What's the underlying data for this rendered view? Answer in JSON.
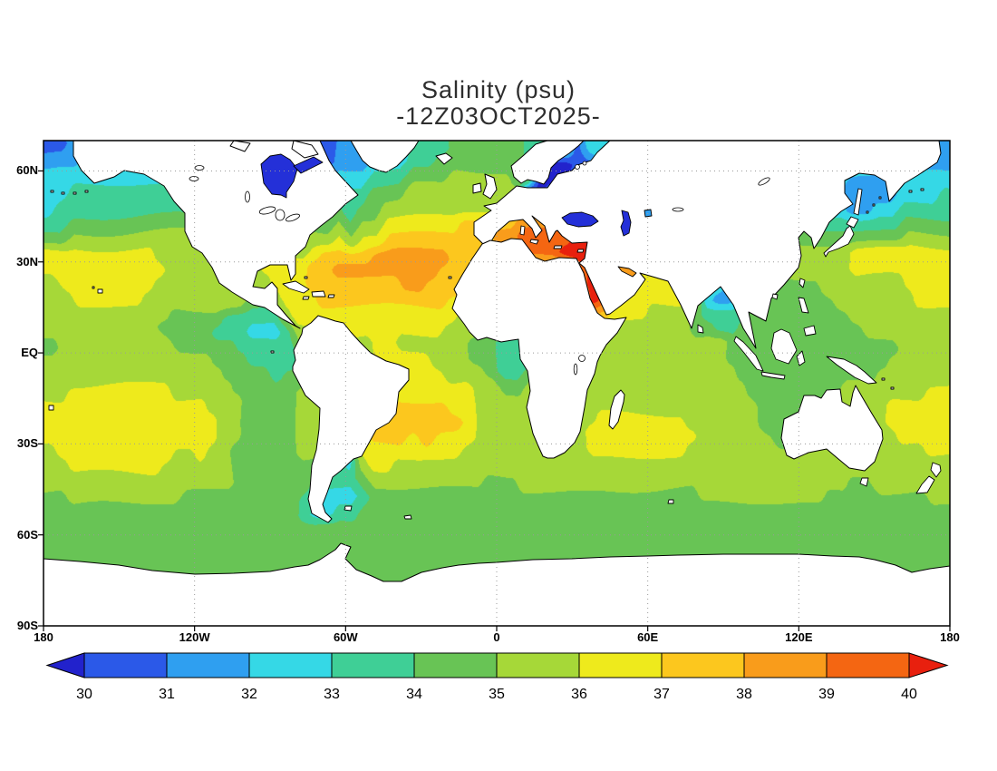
{
  "title": {
    "line1": "Salinity (psu)",
    "line2": "-12Z03OCT2025-"
  },
  "map": {
    "lat_ticks": [
      {
        "label": "60N",
        "lat": 60
      },
      {
        "label": "30N",
        "lat": 30
      },
      {
        "label": "EQ",
        "lat": 0
      },
      {
        "label": "30S",
        "lat": -30
      },
      {
        "label": "60S",
        "lat": -60
      },
      {
        "label": "90S",
        "lat": -90
      }
    ],
    "lon_ticks": [
      {
        "label": "180",
        "lon": -180
      },
      {
        "label": "120W",
        "lon": -120
      },
      {
        "label": "60W",
        "lon": -60
      },
      {
        "label": "0",
        "lon": 0
      },
      {
        "label": "60E",
        "lon": 60
      },
      {
        "label": "120E",
        "lon": 120
      },
      {
        "label": "180",
        "lon": 180
      }
    ]
  },
  "colorbar": {
    "labels": [
      "30",
      "31",
      "32",
      "33",
      "34",
      "35",
      "36",
      "37",
      "38",
      "39",
      "40"
    ]
  },
  "chart_data": {
    "type": "heatmap",
    "title": "Salinity (psu)",
    "time_label": "12Z03OCT2025",
    "units": "psu",
    "levels": [
      30,
      31,
      32,
      33,
      34,
      35,
      36,
      37,
      38,
      39,
      40
    ],
    "lon_range": [
      -180,
      180
    ],
    "lat_range": [
      -90,
      70
    ],
    "palette_keys": "0123456789AB",
    "palette_colors": [
      "#2222cc",
      "#2b59e8",
      "#2f9ff0",
      "#35d8e6",
      "#3fcf96",
      "#68c455",
      "#a6d838",
      "#eeea1c",
      "#fcc71e",
      "#f99c1b",
      "#f46612",
      "#e8200e"
    ],
    "grid_rows": [
      "112223333332222210001112223334445555554444133333333333333333333333332222",
      "222333333333332210001112223334455555554400113333333333333333333333332222",
      "333333333333333321111223334445556666655000233333333333333333333322223333",
      "334444444444443322223334445556666666660022334444444444444433332222223334",
      "344444444444444433334445455666666666666633334444444444444444443322334444",
      "445555555555555544445556566777777888889999000116666666665555444444445555",
      "55666666666666665555666767788888888899AAAABBA166666666666655555555556666",
      "77777777766666666556678888999999888889AAABBBA866666666666666666677777777",
      "777777777766666667777889999999988877888888ABA8A8777777666666666677777777",
      "677777777666666666777888888899888877777777ABA877777733245555556666667777",
      "6677777766666666556777888888888877777777779BA777777732234555555666666777",
      "666666666655554444467777777777777666666666788777666544445555555566666666",
      "666666666555544433346677777777776666655555566666666554455555555556666666",
      "566666666655555444445667667766666655444555666666666666555555555555556666",
      "666666666666655544445666667777766655444555666666666666555555555555566666",
      "666666666666665555455667777777776665445566666666666666655555555555666666",
      "667777777766666555556677777777777766556666666666666666665555555666666677",
      "777777777777766655556677778888887766666666666666666666666555556666677777",
      "777777777777776655556677778888888766666666667777777666666555566666677777",
      "777777777777776655556667778887877766666666677777777766666655566666667777",
      "677777777766766555556655477777777666666666677777777666666666666666666677",
      "667777777666666555555544367766666666666666666666666666666666666666666666",
      "666666666666666555555444456666666665556666666666666666666666666655666666",
      "556666666665555555554433345555555555555555555555555566666666665555555566",
      "555555555555555555554334455555555555555555555555555555555555555555555555",
      "555555555555555555555555555555555555555555555555555555555555555555555555",
      "555555555555555555555555555555555555555555555555555555555555555555555555",
      "555555555555555555555555555555555555555555555555555555555555555555555555",
      "555555555555555555555555555555555555555555555555555555555555555555555555",
      "555555555555555555555555555555555555555555555555555555555555555555555555",
      "555555555555555555555555555555555555555555555555555555555555555555555555",
      "555555555555555555555555555555555555555555555555555555555555555555555555"
    ]
  }
}
